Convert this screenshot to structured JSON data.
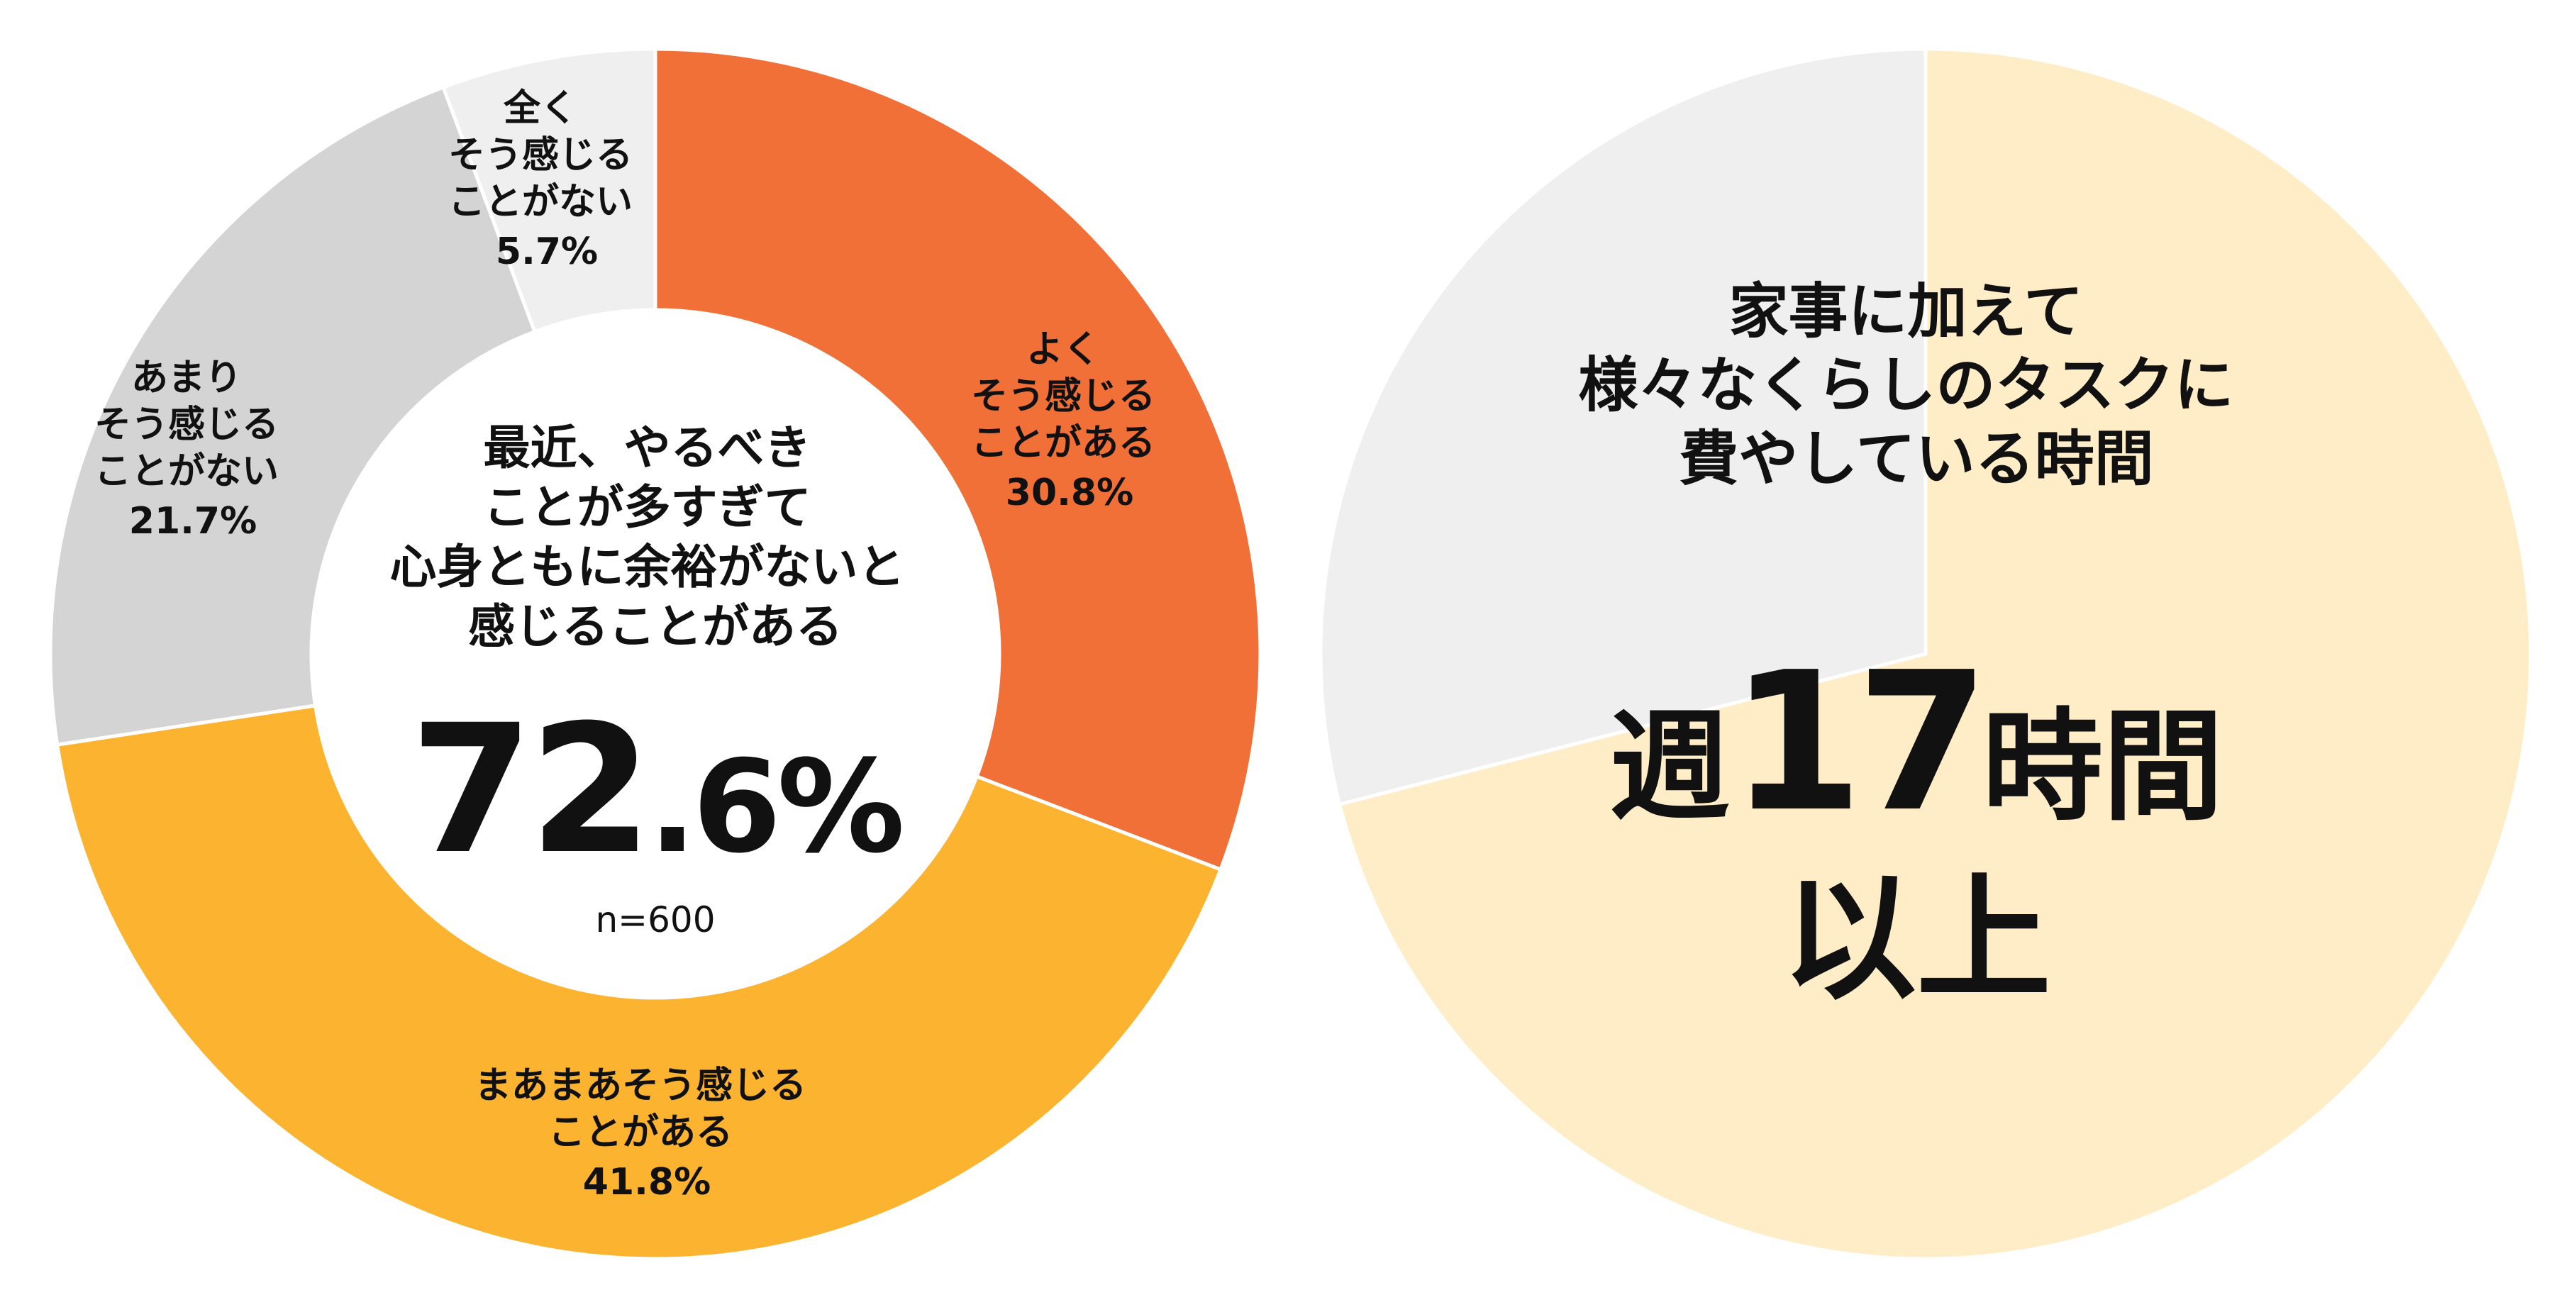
{
  "chart_data": [
    {
      "type": "pie",
      "variant": "donut",
      "sample_size_label": "n=600",
      "center_title_lines": [
        "最近、やるべき",
        "ことが多すぎて",
        "心身ともに余裕がないと",
        "感じることがある"
      ],
      "center_value": {
        "integer": "72",
        "decimal": ".6%"
      },
      "slices": [
        {
          "label_lines": [
            "よく",
            "そう感じる",
            "ことがある"
          ],
          "value": 30.8,
          "value_label": "30.8%",
          "color": "#F07038"
        },
        {
          "label_lines": [
            "まあまあそう感じる",
            "ことがある"
          ],
          "value": 41.8,
          "value_label": "41.8%",
          "color": "#FBB330"
        },
        {
          "label_lines": [
            "あまり",
            "そう感じる",
            "ことがない"
          ],
          "value": 21.7,
          "value_label": "21.7%",
          "color": "#D4D4D4"
        },
        {
          "label_lines": [
            "全く",
            "そう感じる",
            "ことがない"
          ],
          "value": 5.7,
          "value_label": "5.7%",
          "color": "#EFEFEF"
        }
      ]
    },
    {
      "type": "pie",
      "title_lines": [
        "家事に加えて",
        "様々なくらしのタスクに",
        "費やしている時間"
      ],
      "headline": {
        "prefix": "週",
        "number": "17",
        "suffix": "時間",
        "line2": "以上"
      },
      "slices": [
        {
          "value": 71,
          "color": "#FFEDC8"
        },
        {
          "value": 29,
          "color": "#EFEFEF"
        }
      ]
    }
  ]
}
